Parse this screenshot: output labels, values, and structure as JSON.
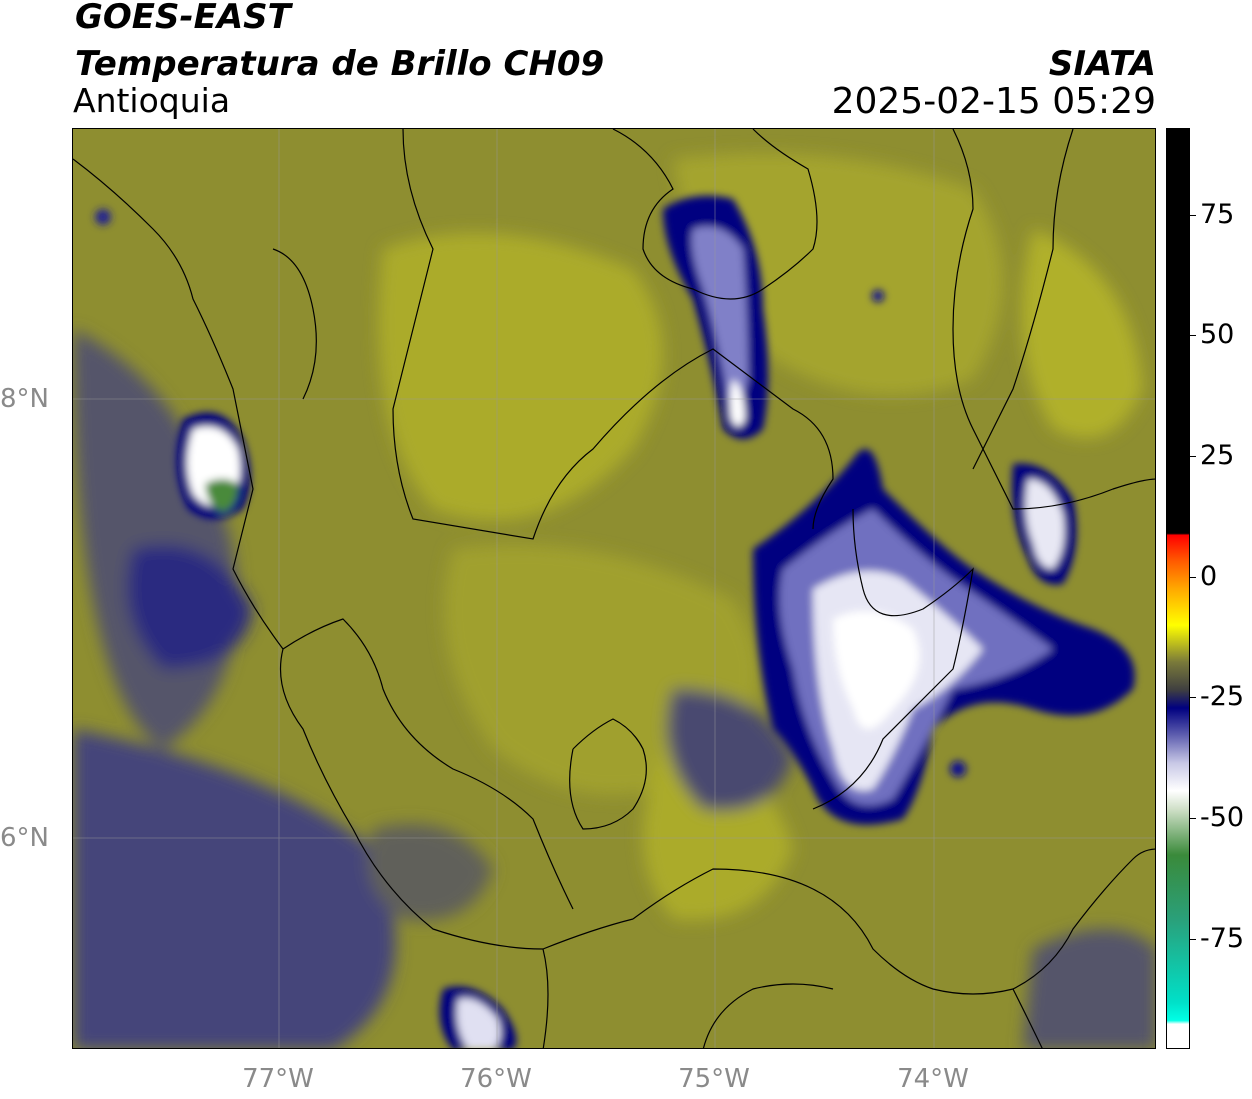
{
  "header": {
    "title_line1": "GOES-EAST",
    "title_line2": "Temperatura de Brillo CH09",
    "region": "Antioquia",
    "brand": "SIATA",
    "datetime": "2025-02-15 05:29"
  },
  "axes": {
    "latitudes": [
      "8°N",
      "6°N"
    ],
    "longitudes": [
      "77°W",
      "76°W",
      "75°W",
      "74°W"
    ]
  },
  "colorbar": {
    "ticks": [
      "75",
      "50",
      "25",
      "0",
      "-25",
      "-50",
      "-75"
    ],
    "colors": {
      "warm": "#000000",
      "red": "#ff0000",
      "orange": "#ffa800",
      "yellow": "#ffff00",
      "olive": "#8e8e30",
      "navy": "#000080",
      "white": "#ffffff",
      "green": "#3a8a3a",
      "cyan": "#00e0c8"
    }
  }
}
